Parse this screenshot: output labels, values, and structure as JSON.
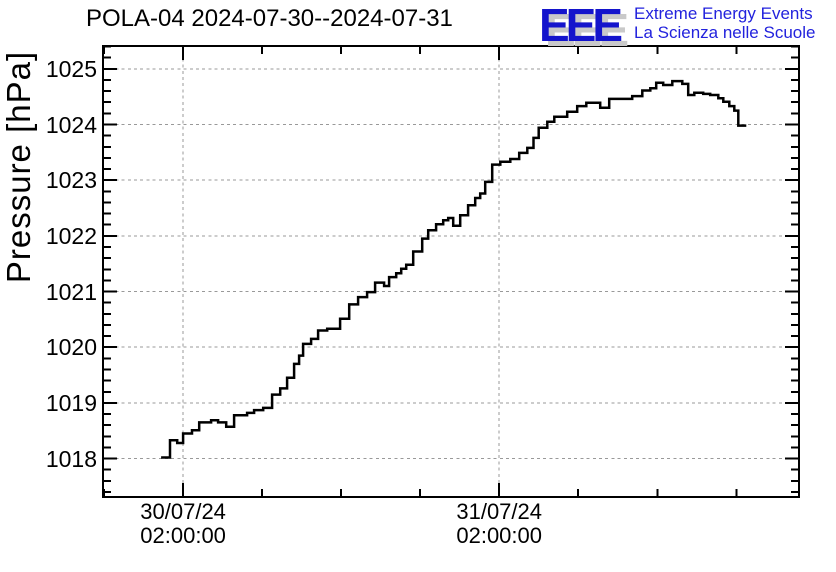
{
  "header": {
    "title": "POLA-04 2024-07-30--2024-07-31"
  },
  "logo": {
    "letters": "EEE",
    "line1": "Extreme Energy Events",
    "line2": "La Scienza nelle Scuole",
    "letters_color": "#1414cc",
    "shadow_color": "#c9c9c9",
    "text_color": "#2222dd"
  },
  "chart_data": {
    "type": "line",
    "step_interpolation": true,
    "title": "POLA-04 2024-07-30--2024-07-31",
    "xlabel": "",
    "ylabel": "Pressure [hPa]",
    "x_unit": "hours since 2024-07-30 00:00",
    "xlim": [
      -4.08,
      48.76
    ],
    "ylim": [
      1017.31,
      1025.41
    ],
    "grid": "dotted gray at major ticks, both axes",
    "legend": "none",
    "line_color": "#000000",
    "grid_color": "#999999",
    "x_major_ticks": [
      {
        "t": 2,
        "line1": "30/07/24",
        "line2": "02:00:00"
      },
      {
        "t": 26,
        "line1": "31/07/24",
        "line2": "02:00:00"
      }
    ],
    "x_minor_ticks": [
      -4,
      8,
      14,
      20,
      32,
      38,
      44
    ],
    "y_major_ticks": [
      1018,
      1019,
      1020,
      1021,
      1022,
      1023,
      1024,
      1025
    ],
    "y_minor_step": 0.2,
    "series": [
      {
        "name": "pressure",
        "end_t": 44.76,
        "points": [
          [
            0.33,
            1018.02
          ],
          [
            1.01,
            1018.33
          ],
          [
            1.55,
            1018.28
          ],
          [
            2.0,
            1018.45
          ],
          [
            2.68,
            1018.51
          ],
          [
            3.22,
            1018.65
          ],
          [
            4.13,
            1018.69
          ],
          [
            4.66,
            1018.65
          ],
          [
            5.27,
            1018.57
          ],
          [
            5.87,
            1018.78
          ],
          [
            6.86,
            1018.82
          ],
          [
            7.39,
            1018.87
          ],
          [
            8.08,
            1018.91
          ],
          [
            8.76,
            1019.15
          ],
          [
            9.37,
            1019.26
          ],
          [
            9.9,
            1019.45
          ],
          [
            10.43,
            1019.7
          ],
          [
            10.81,
            1019.85
          ],
          [
            11.11,
            1020.06
          ],
          [
            11.72,
            1020.15
          ],
          [
            12.25,
            1020.3
          ],
          [
            12.94,
            1020.33
          ],
          [
            13.92,
            1020.51
          ],
          [
            14.61,
            1020.77
          ],
          [
            15.29,
            1020.9
          ],
          [
            15.97,
            1020.99
          ],
          [
            16.58,
            1021.16
          ],
          [
            17.26,
            1021.1
          ],
          [
            17.64,
            1021.26
          ],
          [
            18.18,
            1021.33
          ],
          [
            18.56,
            1021.41
          ],
          [
            18.94,
            1021.48
          ],
          [
            19.47,
            1021.72
          ],
          [
            20.15,
            1021.95
          ],
          [
            20.61,
            1022.1
          ],
          [
            21.21,
            1022.21
          ],
          [
            21.75,
            1022.28
          ],
          [
            22.13,
            1022.32
          ],
          [
            22.51,
            1022.18
          ],
          [
            23.04,
            1022.37
          ],
          [
            23.64,
            1022.55
          ],
          [
            24.18,
            1022.68
          ],
          [
            24.56,
            1022.76
          ],
          [
            24.94,
            1022.97
          ],
          [
            25.47,
            1023.28
          ],
          [
            26.08,
            1023.33
          ],
          [
            26.84,
            1023.38
          ],
          [
            27.52,
            1023.49
          ],
          [
            28.13,
            1023.58
          ],
          [
            28.6,
            1023.76
          ],
          [
            29.0,
            1023.94
          ],
          [
            29.65,
            1024.05
          ],
          [
            30.18,
            1024.14
          ],
          [
            31.16,
            1024.23
          ],
          [
            31.92,
            1024.33
          ],
          [
            32.61,
            1024.39
          ],
          [
            33.67,
            1024.3
          ],
          [
            34.35,
            1024.46
          ],
          [
            36.1,
            1024.51
          ],
          [
            36.86,
            1024.61
          ],
          [
            37.47,
            1024.65
          ],
          [
            37.92,
            1024.75
          ],
          [
            38.45,
            1024.71
          ],
          [
            39.14,
            1024.78
          ],
          [
            39.9,
            1024.73
          ],
          [
            40.35,
            1024.53
          ],
          [
            40.81,
            1024.57
          ],
          [
            41.49,
            1024.55
          ],
          [
            42.02,
            1024.53
          ],
          [
            42.63,
            1024.47
          ],
          [
            43.01,
            1024.41
          ],
          [
            43.47,
            1024.33
          ],
          [
            43.85,
            1024.25
          ],
          [
            44.15,
            1023.98
          ]
        ]
      }
    ]
  }
}
